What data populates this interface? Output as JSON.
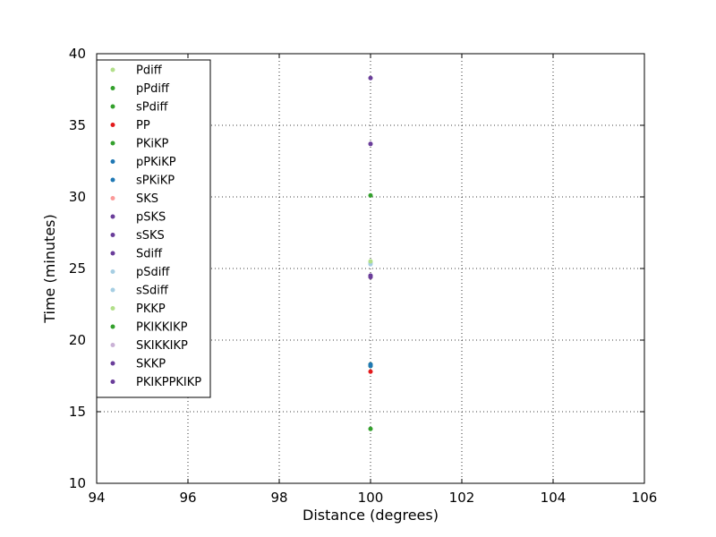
{
  "chart_data": {
    "type": "scatter",
    "title": "",
    "xlabel": "Distance (degrees)",
    "ylabel": "Time (minutes)",
    "xlim": [
      94,
      106
    ],
    "ylim": [
      10,
      40
    ],
    "xticks": [
      94,
      96,
      98,
      100,
      102,
      104,
      106
    ],
    "yticks": [
      10,
      15,
      20,
      25,
      30,
      35,
      40
    ],
    "grid": true,
    "legend_position": "upper-left",
    "series": [
      {
        "name": "Pdiff",
        "color": "#b2df8a",
        "x": [
          100
        ],
        "y": [
          18.2
        ]
      },
      {
        "name": "pPdiff",
        "color": "#33a02c",
        "x": [
          100
        ],
        "y": [
          18.2
        ]
      },
      {
        "name": "sPdiff",
        "color": "#33a02c",
        "x": [
          100
        ],
        "y": [
          18.3
        ]
      },
      {
        "name": "PP",
        "color": "#e31a1c",
        "x": [
          100
        ],
        "y": [
          17.8
        ]
      },
      {
        "name": "PKiKP",
        "color": "#33a02c",
        "x": [
          100
        ],
        "y": [
          13.8
        ]
      },
      {
        "name": "pPKiKP",
        "color": "#1f78b4",
        "x": [
          100
        ],
        "y": [
          18.2
        ]
      },
      {
        "name": "sPKiKP",
        "color": "#1f78b4",
        "x": [
          100
        ],
        "y": [
          18.3
        ]
      },
      {
        "name": "SKS",
        "color": "#fb9a99",
        "x": [
          100
        ],
        "y": [
          24.4
        ]
      },
      {
        "name": "pSKS",
        "color": "#6a3d9a",
        "x": [
          100
        ],
        "y": [
          24.5
        ]
      },
      {
        "name": "sSKS",
        "color": "#6a3d9a",
        "x": [
          100
        ],
        "y": [
          24.5
        ]
      },
      {
        "name": "Sdiff",
        "color": "#6a3d9a",
        "x": [
          100
        ],
        "y": [
          24.4
        ]
      },
      {
        "name": "pSdiff",
        "color": "#a6cee3",
        "x": [
          100
        ],
        "y": [
          25.3
        ]
      },
      {
        "name": "sSdiff",
        "color": "#a6cee3",
        "x": [
          100
        ],
        "y": [
          25.4
        ]
      },
      {
        "name": "PKKP",
        "color": "#b2df8a",
        "x": [
          100
        ],
        "y": [
          25.5
        ]
      },
      {
        "name": "PKIKKIKP",
        "color": "#33a02c",
        "x": [
          100
        ],
        "y": [
          30.1
        ]
      },
      {
        "name": "SKIKKIKP",
        "color": "#cab2d6",
        "x": [
          100
        ],
        "y": [
          33.7
        ]
      },
      {
        "name": "SKKP",
        "color": "#6a3d9a",
        "x": [
          100
        ],
        "y": [
          33.7
        ]
      },
      {
        "name": "PKIKPPKIKP",
        "color": "#6a3d9a",
        "x": [
          100
        ],
        "y": [
          38.3
        ]
      }
    ]
  }
}
